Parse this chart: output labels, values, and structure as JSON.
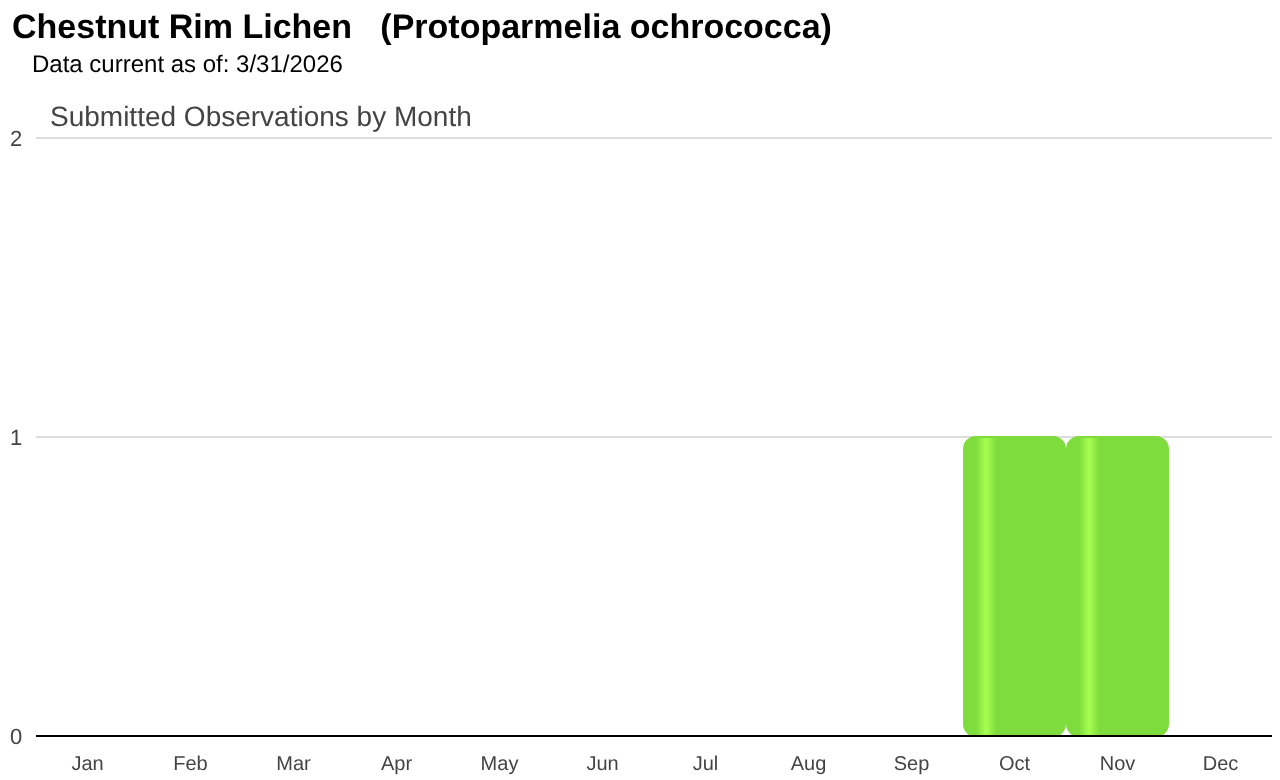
{
  "chart_data": {
    "type": "bar",
    "title": "Chestnut Rim Lichen   (Protoparmelia ochrococca)",
    "subtitle": "Data current as of: 3/31/2026",
    "annotations": [
      "Submitted Observations by Month"
    ],
    "categories": [
      "Jan",
      "Feb",
      "Mar",
      "Apr",
      "May",
      "Jun",
      "Jul",
      "Aug",
      "Sep",
      "Oct",
      "Nov",
      "Dec"
    ],
    "values": [
      0,
      0,
      0,
      0,
      0,
      0,
      0,
      0,
      0,
      1,
      1,
      0
    ],
    "color": "#7edc3c",
    "ylim": [
      0,
      2
    ],
    "yticks": [
      0,
      1,
      2
    ],
    "grid": "y"
  }
}
